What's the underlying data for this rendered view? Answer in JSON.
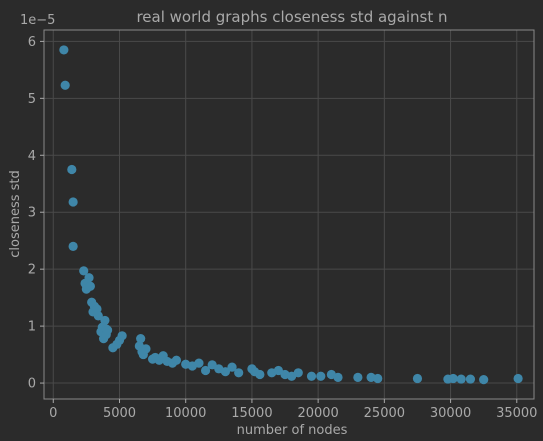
{
  "chart_data": {
    "type": "scatter",
    "title": "real world graphs closeness std against n",
    "xlabel": "number of nodes",
    "ylabel": "closeness std",
    "y_offset_label": "1e−5",
    "xlim": [
      -700,
      36300
    ],
    "ylim": [
      -0.28,
      6.2
    ],
    "x_ticks": [
      0,
      5000,
      10000,
      15000,
      20000,
      25000,
      30000,
      35000
    ],
    "x_tick_labels": [
      "0",
      "5000",
      "10000",
      "15000",
      "20000",
      "25000",
      "30000",
      "35000"
    ],
    "y_ticks": [
      0,
      1,
      2,
      3,
      4,
      5,
      6
    ],
    "y_tick_labels": [
      "0",
      "1",
      "2",
      "3",
      "4",
      "5",
      "6"
    ],
    "grid": true,
    "point_color": "#3f86a8",
    "x": [
      800,
      900,
      1400,
      1500,
      1500,
      2300,
      2400,
      2500,
      2700,
      2800,
      2900,
      3000,
      3100,
      3300,
      3400,
      3600,
      3700,
      3800,
      3900,
      4000,
      4000,
      4100,
      4500,
      4800,
      5000,
      5200,
      6500,
      6600,
      6700,
      6800,
      7000,
      7500,
      7700,
      8000,
      8300,
      8600,
      9000,
      9300,
      10000,
      10500,
      11000,
      11500,
      12000,
      12500,
      13000,
      13500,
      14000,
      15000,
      15200,
      15600,
      16500,
      17000,
      17500,
      18000,
      18500,
      19500,
      20200,
      21000,
      21500,
      23000,
      24000,
      24500,
      27500,
      29800,
      30200,
      30800,
      31500,
      32500,
      35100
    ],
    "y": [
      5.85,
      5.23,
      3.75,
      3.18,
      2.4,
      1.97,
      1.75,
      1.65,
      1.85,
      1.7,
      1.42,
      1.25,
      1.35,
      1.3,
      1.18,
      0.9,
      0.98,
      0.78,
      1.1,
      0.95,
      0.85,
      0.93,
      0.62,
      0.68,
      0.75,
      0.83,
      0.65,
      0.78,
      0.55,
      0.5,
      0.6,
      0.42,
      0.45,
      0.4,
      0.48,
      0.38,
      0.35,
      0.4,
      0.33,
      0.3,
      0.35,
      0.22,
      0.32,
      0.25,
      0.2,
      0.28,
      0.18,
      0.25,
      0.2,
      0.15,
      0.18,
      0.22,
      0.15,
      0.12,
      0.18,
      0.12,
      0.12,
      0.15,
      0.1,
      0.1,
      0.1,
      0.08,
      0.08,
      0.07,
      0.08,
      0.07,
      0.07,
      0.06,
      0.08
    ]
  }
}
